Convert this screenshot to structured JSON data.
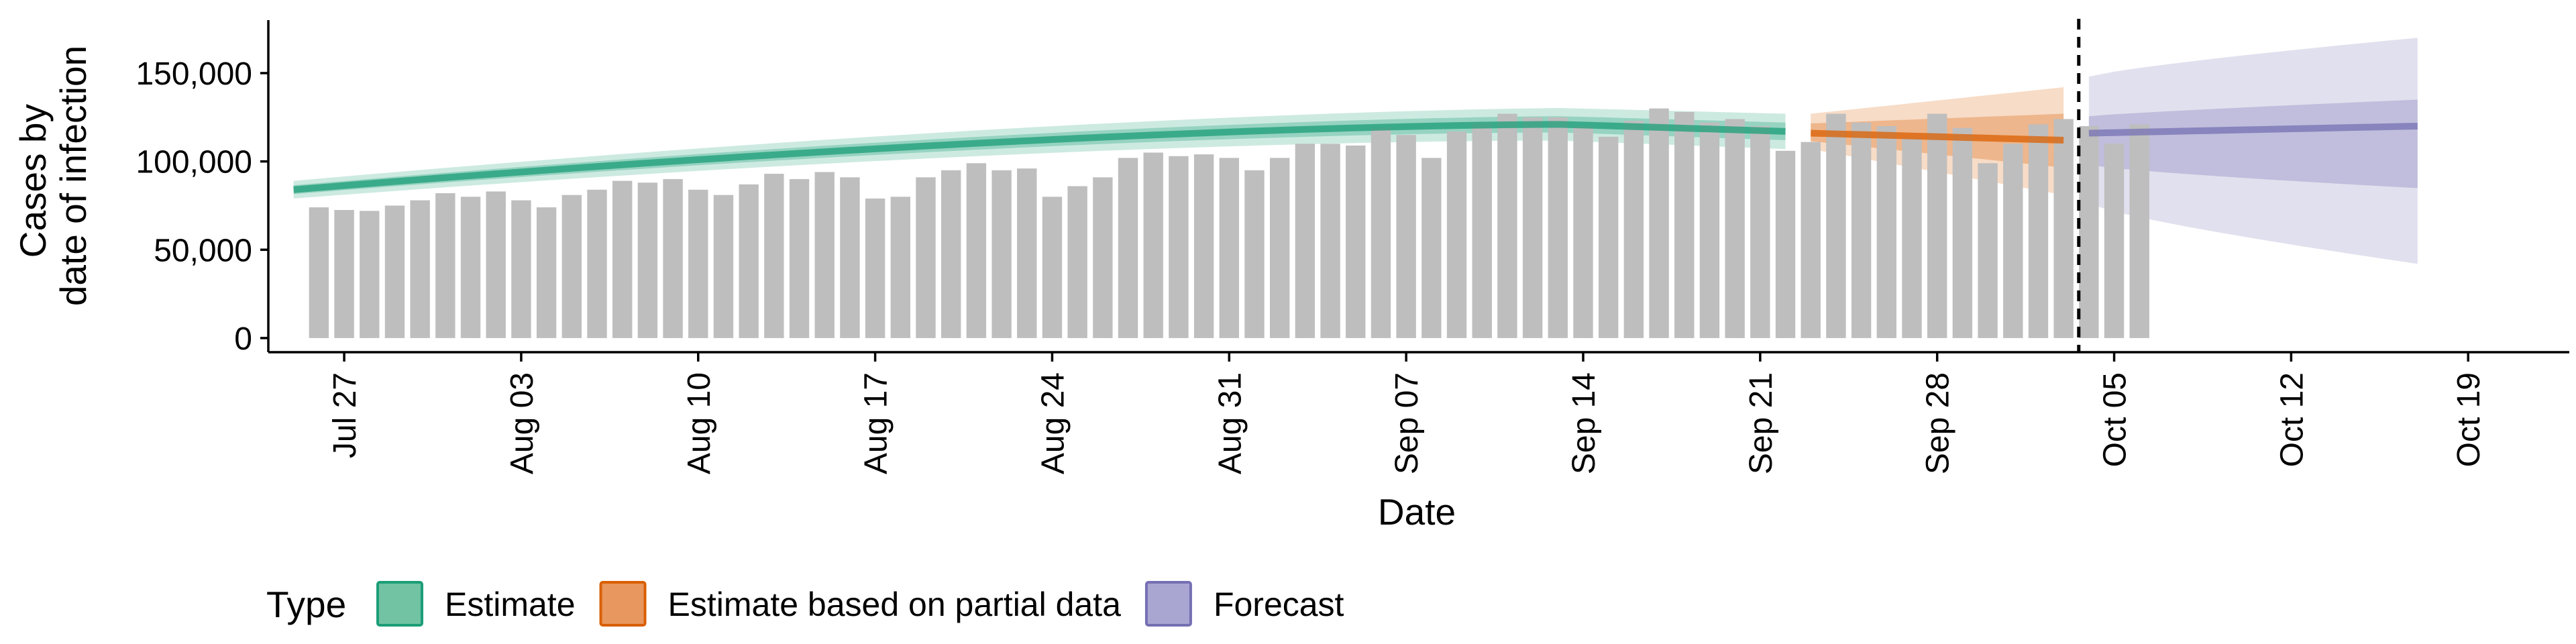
{
  "chart_data": {
    "type": "bar",
    "xlabel": "Date",
    "ylabel_lines": [
      "Cases by",
      "date of infection"
    ],
    "y_ticks": [
      0,
      50000,
      100000,
      150000
    ],
    "y_tick_labels": [
      "0",
      "50,000",
      "100,000",
      "150,000"
    ],
    "ylim": [
      -8000,
      180000
    ],
    "x_range": [
      "2020-07-24",
      "2020-10-23"
    ],
    "x_ticks": [
      "2020-07-27",
      "2020-08-03",
      "2020-08-10",
      "2020-08-17",
      "2020-08-24",
      "2020-08-31",
      "2020-09-07",
      "2020-09-14",
      "2020-09-21",
      "2020-09-28",
      "2020-10-05",
      "2020-10-12",
      "2020-10-19"
    ],
    "x_tick_labels": [
      "Jul 27",
      "Aug 03",
      "Aug 10",
      "Aug 17",
      "Aug 24",
      "Aug 31",
      "Sep 07",
      "Sep 14",
      "Sep 21",
      "Sep 28",
      "Oct 05",
      "Oct 12",
      "Oct 19"
    ],
    "forecast_date": "2020-10-03",
    "bar_color": "#bebebe",
    "bars": {
      "start_date": "2020-07-26",
      "values": [
        74000,
        72500,
        72000,
        75000,
        78000,
        82000,
        80000,
        83000,
        78000,
        74000,
        81000,
        84000,
        89000,
        88000,
        90000,
        84000,
        81000,
        87000,
        93000,
        90000,
        94000,
        91000,
        79000,
        80000,
        91000,
        95000,
        99000,
        95000,
        96000,
        80000,
        86000,
        91000,
        102000,
        105000,
        103000,
        104000,
        102000,
        95000,
        102000,
        110000,
        110000,
        109000,
        119000,
        115000,
        102000,
        117000,
        122000,
        127000,
        125000,
        125000,
        120000,
        114000,
        123000,
        130000,
        128000,
        122000,
        124000,
        120000,
        106000,
        111000,
        127000,
        122000,
        120000,
        113000,
        127000,
        119000,
        99000,
        110000,
        121000,
        124000,
        120000,
        110000,
        121000
      ]
    },
    "series": [
      {
        "name": "Estimate",
        "color": "#1b9e77",
        "legend_fill": "#72c2a4",
        "start_date": "2020-07-25",
        "end_date": "2020-09-22",
        "median_start": 84000,
        "median_end": 117000,
        "median_peak": 121000
      },
      {
        "name": "Estimate based on partial data",
        "color": "#d95f02",
        "legend_fill": "#e8975f",
        "start_date": "2020-09-23",
        "end_date": "2020-10-03",
        "median_start": 116000,
        "median_end": 112000,
        "outer_lower_end": 81000,
        "outer_upper_end": 142000
      },
      {
        "name": "Forecast",
        "color": "#7570b3",
        "legend_fill": "#aaa6d2",
        "start_date": "2020-10-04",
        "end_date": "2020-10-17",
        "median_start": 116000,
        "median_end": 120000,
        "outer_lower_start": 76000,
        "outer_lower_end": 42000,
        "outer_upper_start": 148000,
        "outer_upper_end": 170000
      }
    ],
    "legend": {
      "title": "Type",
      "position": "bottom"
    }
  }
}
